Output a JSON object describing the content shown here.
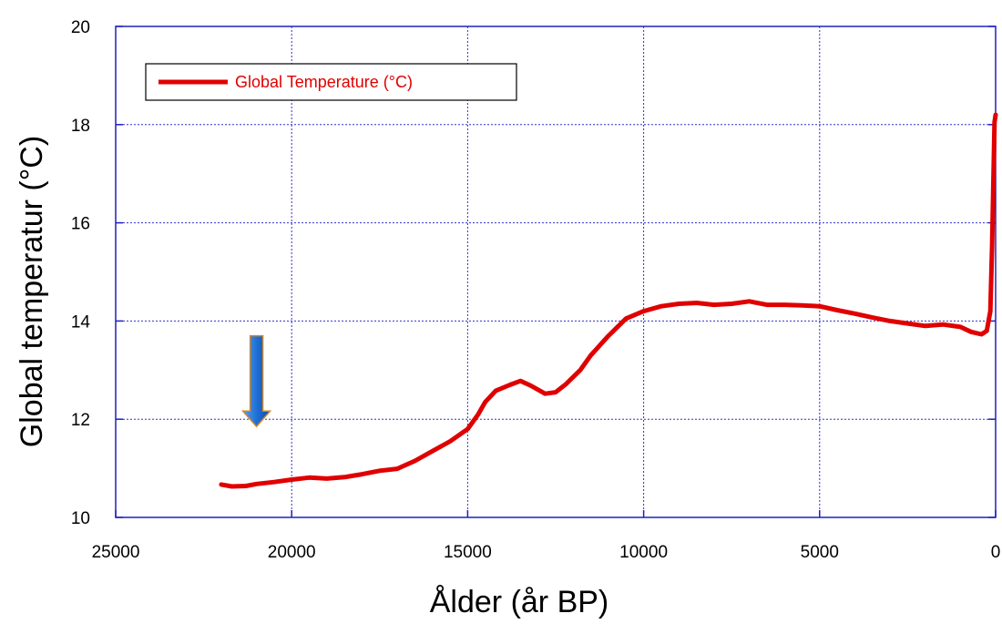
{
  "chart_data": {
    "type": "line",
    "title": "",
    "xlabel": "Ålder (år BP)",
    "ylabel": "Global temperatur (°C)",
    "xlim": [
      25000,
      0
    ],
    "ylim": [
      10,
      20
    ],
    "x_ticks": [
      25000,
      20000,
      15000,
      10000,
      5000,
      0
    ],
    "y_ticks": [
      10,
      12,
      14,
      16,
      18,
      20
    ],
    "x_tick_labels": [
      "25000",
      "20000",
      "15000",
      "10000",
      "5000",
      "0"
    ],
    "y_tick_labels": [
      "10",
      "12",
      "14",
      "16",
      "18",
      "20"
    ],
    "grid": true,
    "legend": {
      "position": "top-left",
      "entries": [
        "Global Temperature (°C)"
      ]
    },
    "series": [
      {
        "name": "Global Temperature (°C)",
        "color": "#e00000",
        "points": [
          [
            22000,
            10.67
          ],
          [
            21700,
            10.63
          ],
          [
            21300,
            10.64
          ],
          [
            21000,
            10.68
          ],
          [
            20500,
            10.72
          ],
          [
            20000,
            10.77
          ],
          [
            19500,
            10.81
          ],
          [
            19000,
            10.79
          ],
          [
            18500,
            10.82
          ],
          [
            18000,
            10.88
          ],
          [
            17500,
            10.95
          ],
          [
            17000,
            10.99
          ],
          [
            16500,
            11.15
          ],
          [
            16000,
            11.35
          ],
          [
            15500,
            11.55
          ],
          [
            15000,
            11.8
          ],
          [
            14700,
            12.1
          ],
          [
            14500,
            12.35
          ],
          [
            14200,
            12.58
          ],
          [
            13800,
            12.7
          ],
          [
            13500,
            12.78
          ],
          [
            13200,
            12.68
          ],
          [
            12800,
            12.52
          ],
          [
            12500,
            12.55
          ],
          [
            12200,
            12.72
          ],
          [
            11800,
            13.0
          ],
          [
            11500,
            13.3
          ],
          [
            11000,
            13.7
          ],
          [
            10500,
            14.05
          ],
          [
            10000,
            14.2
          ],
          [
            9500,
            14.3
          ],
          [
            9000,
            14.35
          ],
          [
            8500,
            14.37
          ],
          [
            8000,
            14.33
          ],
          [
            7500,
            14.35
          ],
          [
            7000,
            14.4
          ],
          [
            6500,
            14.33
          ],
          [
            6000,
            14.33
          ],
          [
            5500,
            14.32
          ],
          [
            5000,
            14.3
          ],
          [
            4500,
            14.22
          ],
          [
            4000,
            14.15
          ],
          [
            3500,
            14.07
          ],
          [
            3000,
            14.0
          ],
          [
            2500,
            13.95
          ],
          [
            2000,
            13.9
          ],
          [
            1500,
            13.93
          ],
          [
            1000,
            13.88
          ],
          [
            700,
            13.78
          ],
          [
            400,
            13.73
          ],
          [
            250,
            13.8
          ],
          [
            150,
            14.2
          ],
          [
            100,
            15.5
          ],
          [
            60,
            17.0
          ],
          [
            30,
            18.05
          ],
          [
            0,
            18.2
          ]
        ]
      }
    ],
    "annotations": [
      {
        "type": "arrow",
        "direction": "down",
        "x": 21000,
        "y_top": 13.7,
        "y_bottom": 11.85,
        "color": "#1f73d8"
      }
    ]
  }
}
